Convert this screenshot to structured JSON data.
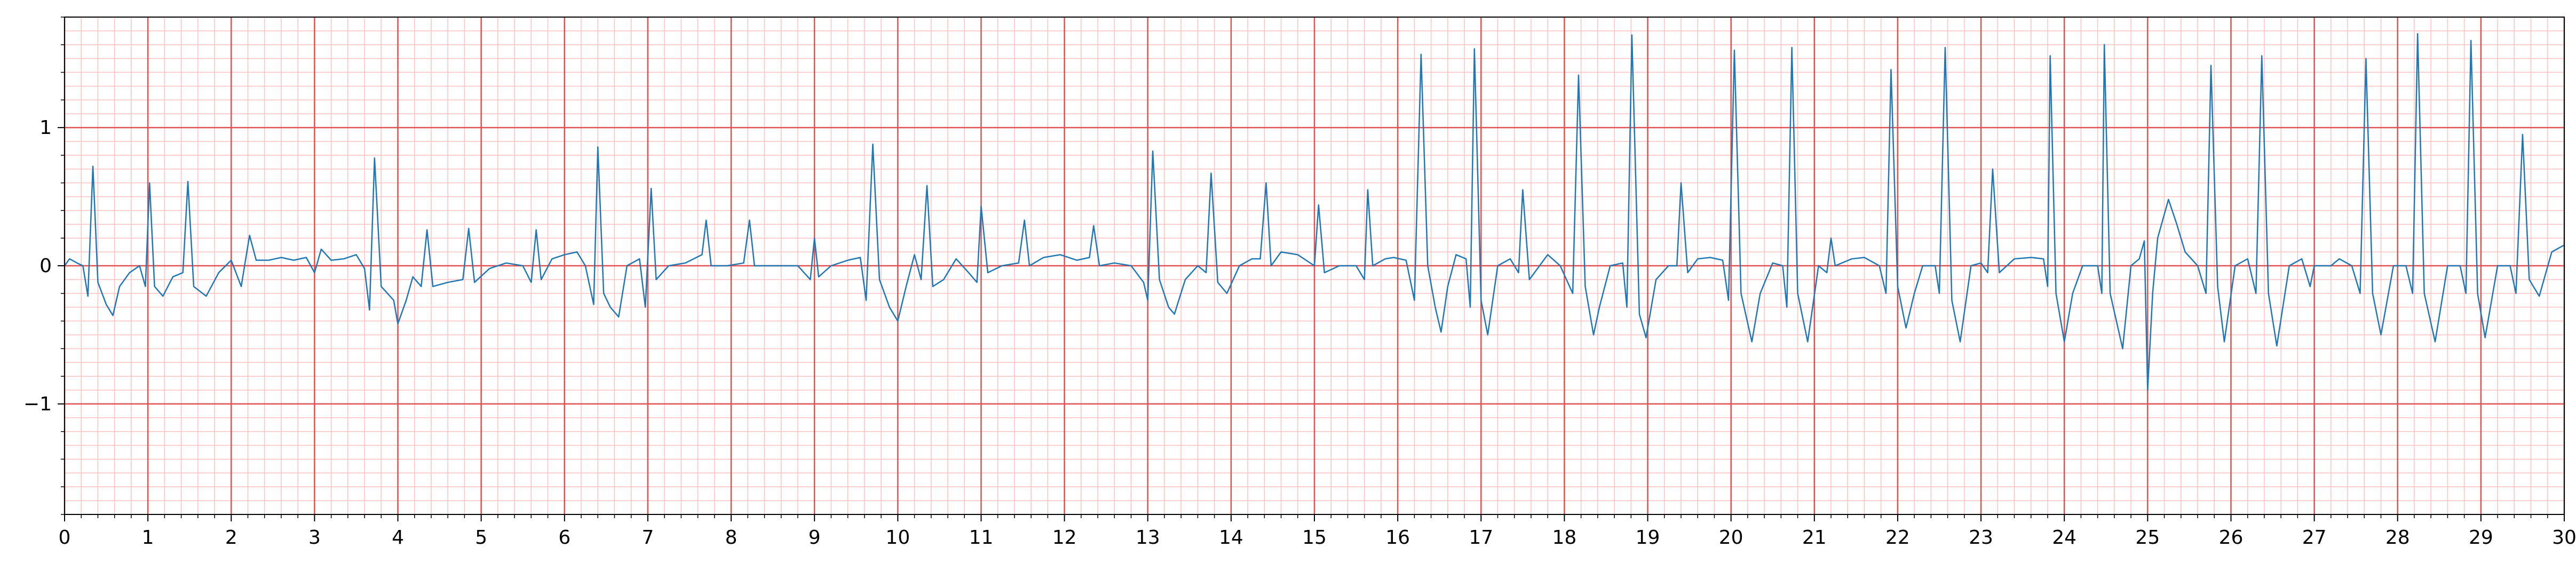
{
  "chart_data": {
    "type": "line",
    "title": "",
    "xlabel": "",
    "ylabel": "",
    "xlim": [
      0,
      30
    ],
    "ylim": [
      -1.8,
      1.8
    ],
    "x_ticks": [
      "0",
      "1",
      "2",
      "3",
      "4",
      "5",
      "6",
      "7",
      "8",
      "9",
      "10",
      "11",
      "12",
      "13",
      "14",
      "15",
      "16",
      "17",
      "18",
      "19",
      "20",
      "21",
      "22",
      "23",
      "24",
      "25",
      "26",
      "27",
      "28",
      "29",
      "30"
    ],
    "y_ticks": [
      {
        "value": 1,
        "label": "1"
      },
      {
        "value": 0,
        "label": "0"
      },
      {
        "value": -1,
        "label": "−1"
      }
    ],
    "grid": {
      "major": true,
      "minor": true,
      "major_x_step": 1,
      "minor_x_step": 0.2,
      "major_y_step": 1,
      "minor_y_step": 0.1
    },
    "colors": {
      "line": "#1f77b4",
      "major_grid": "#e35050",
      "minor_grid": "#ffc0c0",
      "axes": "#000000"
    },
    "series": [
      {
        "points": [
          [
            0.0,
            0.0
          ],
          [
            0.06,
            0.05
          ],
          [
            0.15,
            0.02
          ],
          [
            0.22,
            0.0
          ],
          [
            0.28,
            -0.22
          ],
          [
            0.34,
            0.72
          ],
          [
            0.4,
            -0.12
          ],
          [
            0.5,
            -0.28
          ],
          [
            0.58,
            -0.36
          ],
          [
            0.66,
            -0.15
          ],
          [
            0.78,
            -0.05
          ],
          [
            0.9,
            0.0
          ],
          [
            0.97,
            -0.15
          ],
          [
            1.02,
            0.6
          ],
          [
            1.08,
            -0.15
          ],
          [
            1.18,
            -0.22
          ],
          [
            1.3,
            -0.08
          ],
          [
            1.42,
            -0.05
          ],
          [
            1.48,
            0.61
          ],
          [
            1.55,
            -0.15
          ],
          [
            1.7,
            -0.22
          ],
          [
            1.85,
            -0.05
          ],
          [
            2.0,
            0.04
          ],
          [
            2.12,
            -0.15
          ],
          [
            2.22,
            0.22
          ],
          [
            2.3,
            0.04
          ],
          [
            2.45,
            0.04
          ],
          [
            2.6,
            0.06
          ],
          [
            2.75,
            0.04
          ],
          [
            2.9,
            0.06
          ],
          [
            3.0,
            -0.05
          ],
          [
            3.08,
            0.12
          ],
          [
            3.2,
            0.04
          ],
          [
            3.35,
            0.05
          ],
          [
            3.5,
            0.08
          ],
          [
            3.6,
            -0.02
          ],
          [
            3.66,
            -0.32
          ],
          [
            3.72,
            0.78
          ],
          [
            3.8,
            -0.15
          ],
          [
            3.95,
            -0.25
          ],
          [
            4.0,
            -0.42
          ],
          [
            4.1,
            -0.25
          ],
          [
            4.18,
            -0.08
          ],
          [
            4.28,
            -0.15
          ],
          [
            4.35,
            0.26
          ],
          [
            4.42,
            -0.15
          ],
          [
            4.6,
            -0.12
          ],
          [
            4.78,
            -0.1
          ],
          [
            4.85,
            0.27
          ],
          [
            4.92,
            -0.12
          ],
          [
            5.1,
            -0.02
          ],
          [
            5.3,
            0.02
          ],
          [
            5.5,
            0.0
          ],
          [
            5.6,
            -0.12
          ],
          [
            5.66,
            0.26
          ],
          [
            5.72,
            -0.1
          ],
          [
            5.85,
            0.05
          ],
          [
            6.0,
            0.08
          ],
          [
            6.15,
            0.1
          ],
          [
            6.25,
            0.0
          ],
          [
            6.35,
            -0.28
          ],
          [
            6.4,
            0.86
          ],
          [
            6.47,
            -0.2
          ],
          [
            6.55,
            -0.3
          ],
          [
            6.65,
            -0.37
          ],
          [
            6.75,
            0.0
          ],
          [
            6.9,
            0.05
          ],
          [
            6.97,
            -0.3
          ],
          [
            7.04,
            0.56
          ],
          [
            7.1,
            -0.1
          ],
          [
            7.25,
            0.0
          ],
          [
            7.45,
            0.02
          ],
          [
            7.65,
            0.08
          ],
          [
            7.7,
            0.33
          ],
          [
            7.76,
            0.0
          ],
          [
            7.95,
            0.0
          ],
          [
            8.15,
            0.02
          ],
          [
            8.22,
            0.33
          ],
          [
            8.28,
            0.0
          ],
          [
            8.5,
            0.0
          ],
          [
            8.8,
            0.0
          ],
          [
            8.95,
            -0.1
          ],
          [
            9.0,
            0.2
          ],
          [
            9.05,
            -0.08
          ],
          [
            9.2,
            0.0
          ],
          [
            9.4,
            0.04
          ],
          [
            9.55,
            0.06
          ],
          [
            9.62,
            -0.25
          ],
          [
            9.7,
            0.88
          ],
          [
            9.78,
            -0.1
          ],
          [
            9.9,
            -0.3
          ],
          [
            10.0,
            -0.4
          ],
          [
            10.1,
            -0.15
          ],
          [
            10.2,
            0.08
          ],
          [
            10.28,
            -0.1
          ],
          [
            10.35,
            0.58
          ],
          [
            10.42,
            -0.15
          ],
          [
            10.55,
            -0.1
          ],
          [
            10.7,
            0.05
          ],
          [
            10.85,
            -0.05
          ],
          [
            10.95,
            -0.12
          ],
          [
            11.0,
            0.43
          ],
          [
            11.08,
            -0.05
          ],
          [
            11.25,
            0.0
          ],
          [
            11.45,
            0.02
          ],
          [
            11.52,
            0.33
          ],
          [
            11.58,
            0.0
          ],
          [
            11.75,
            0.06
          ],
          [
            11.95,
            0.08
          ],
          [
            12.15,
            0.04
          ],
          [
            12.3,
            0.06
          ],
          [
            12.35,
            0.29
          ],
          [
            12.42,
            0.0
          ],
          [
            12.6,
            0.02
          ],
          [
            12.8,
            0.0
          ],
          [
            12.95,
            -0.12
          ],
          [
            13.0,
            -0.25
          ],
          [
            13.06,
            0.83
          ],
          [
            13.14,
            -0.1
          ],
          [
            13.25,
            -0.3
          ],
          [
            13.32,
            -0.35
          ],
          [
            13.45,
            -0.1
          ],
          [
            13.6,
            0.0
          ],
          [
            13.7,
            -0.05
          ],
          [
            13.76,
            0.67
          ],
          [
            13.84,
            -0.12
          ],
          [
            13.95,
            -0.2
          ],
          [
            14.1,
            0.0
          ],
          [
            14.25,
            0.05
          ],
          [
            14.35,
            0.05
          ],
          [
            14.42,
            0.6
          ],
          [
            14.48,
            0.0
          ],
          [
            14.6,
            0.1
          ],
          [
            14.8,
            0.08
          ],
          [
            15.0,
            0.0
          ],
          [
            15.05,
            0.44
          ],
          [
            15.12,
            -0.05
          ],
          [
            15.3,
            0.0
          ],
          [
            15.5,
            0.0
          ],
          [
            15.6,
            -0.1
          ],
          [
            15.64,
            0.55
          ],
          [
            15.7,
            0.0
          ],
          [
            15.85,
            0.05
          ],
          [
            15.95,
            0.06
          ],
          [
            16.1,
            0.04
          ],
          [
            16.2,
            -0.25
          ],
          [
            16.28,
            1.53
          ],
          [
            16.36,
            0.0
          ],
          [
            16.45,
            -0.3
          ],
          [
            16.52,
            -0.48
          ],
          [
            16.6,
            -0.15
          ],
          [
            16.7,
            0.08
          ],
          [
            16.82,
            0.05
          ],
          [
            16.87,
            -0.3
          ],
          [
            16.92,
            1.57
          ],
          [
            17.0,
            -0.25
          ],
          [
            17.08,
            -0.5
          ],
          [
            17.2,
            0.0
          ],
          [
            17.35,
            0.05
          ],
          [
            17.45,
            -0.05
          ],
          [
            17.5,
            0.55
          ],
          [
            17.58,
            -0.1
          ],
          [
            17.8,
            0.08
          ],
          [
            17.95,
            0.0
          ],
          [
            18.1,
            -0.2
          ],
          [
            18.17,
            1.38
          ],
          [
            18.25,
            -0.15
          ],
          [
            18.35,
            -0.5
          ],
          [
            18.42,
            -0.3
          ],
          [
            18.55,
            0.0
          ],
          [
            18.7,
            0.02
          ],
          [
            18.75,
            -0.3
          ],
          [
            18.81,
            1.67
          ],
          [
            18.9,
            -0.35
          ],
          [
            18.98,
            -0.52
          ],
          [
            19.1,
            -0.1
          ],
          [
            19.25,
            0.0
          ],
          [
            19.35,
            0.0
          ],
          [
            19.4,
            0.6
          ],
          [
            19.48,
            -0.05
          ],
          [
            19.6,
            0.05
          ],
          [
            19.75,
            0.06
          ],
          [
            19.9,
            0.04
          ],
          [
            19.97,
            -0.25
          ],
          [
            20.04,
            1.56
          ],
          [
            20.12,
            -0.2
          ],
          [
            20.25,
            -0.55
          ],
          [
            20.35,
            -0.2
          ],
          [
            20.5,
            0.02
          ],
          [
            20.62,
            0.0
          ],
          [
            20.67,
            -0.3
          ],
          [
            20.73,
            1.58
          ],
          [
            20.8,
            -0.2
          ],
          [
            20.92,
            -0.55
          ],
          [
            21.05,
            0.0
          ],
          [
            21.15,
            -0.05
          ],
          [
            21.2,
            0.2
          ],
          [
            21.25,
            0.0
          ],
          [
            21.45,
            0.05
          ],
          [
            21.6,
            0.06
          ],
          [
            21.78,
            0.0
          ],
          [
            21.86,
            -0.2
          ],
          [
            21.92,
            1.42
          ],
          [
            22.0,
            -0.15
          ],
          [
            22.1,
            -0.45
          ],
          [
            22.2,
            -0.2
          ],
          [
            22.3,
            0.0
          ],
          [
            22.45,
            0.0
          ],
          [
            22.5,
            -0.2
          ],
          [
            22.57,
            1.58
          ],
          [
            22.65,
            -0.25
          ],
          [
            22.75,
            -0.55
          ],
          [
            22.88,
            0.0
          ],
          [
            23.0,
            0.02
          ],
          [
            23.08,
            -0.05
          ],
          [
            23.14,
            0.7
          ],
          [
            23.22,
            -0.05
          ],
          [
            23.4,
            0.05
          ],
          [
            23.6,
            0.06
          ],
          [
            23.75,
            0.05
          ],
          [
            23.8,
            -0.15
          ],
          [
            23.83,
            1.52
          ],
          [
            23.9,
            -0.2
          ],
          [
            24.0,
            -0.55
          ],
          [
            24.1,
            -0.2
          ],
          [
            24.22,
            0.0
          ],
          [
            24.4,
            0.0
          ],
          [
            24.45,
            -0.2
          ],
          [
            24.48,
            1.6
          ],
          [
            24.55,
            -0.2
          ],
          [
            24.7,
            -0.6
          ],
          [
            24.8,
            0.0
          ],
          [
            24.9,
            0.05
          ],
          [
            24.96,
            0.18
          ],
          [
            25.0,
            -0.9
          ],
          [
            25.06,
            -0.2
          ],
          [
            25.12,
            0.2
          ],
          [
            25.25,
            0.48
          ],
          [
            25.35,
            0.3
          ],
          [
            25.45,
            0.1
          ],
          [
            25.6,
            0.0
          ],
          [
            25.7,
            -0.2
          ],
          [
            25.76,
            1.45
          ],
          [
            25.84,
            -0.15
          ],
          [
            25.92,
            -0.55
          ],
          [
            26.05,
            0.0
          ],
          [
            26.2,
            0.05
          ],
          [
            26.3,
            -0.2
          ],
          [
            26.37,
            1.52
          ],
          [
            26.45,
            -0.2
          ],
          [
            26.55,
            -0.58
          ],
          [
            26.7,
            0.0
          ],
          [
            26.85,
            0.05
          ],
          [
            26.95,
            -0.15
          ],
          [
            27.0,
            0.0
          ],
          [
            27.2,
            0.0
          ],
          [
            27.3,
            0.05
          ],
          [
            27.45,
            0.0
          ],
          [
            27.55,
            -0.2
          ],
          [
            27.62,
            1.5
          ],
          [
            27.7,
            -0.2
          ],
          [
            27.8,
            -0.5
          ],
          [
            27.95,
            0.0
          ],
          [
            28.1,
            0.0
          ],
          [
            28.18,
            -0.2
          ],
          [
            28.24,
            1.68
          ],
          [
            28.32,
            -0.2
          ],
          [
            28.45,
            -0.55
          ],
          [
            28.6,
            0.0
          ],
          [
            28.75,
            0.0
          ],
          [
            28.82,
            -0.2
          ],
          [
            28.88,
            1.63
          ],
          [
            28.96,
            -0.2
          ],
          [
            29.05,
            -0.52
          ],
          [
            29.2,
            0.0
          ],
          [
            29.35,
            0.0
          ],
          [
            29.42,
            -0.2
          ],
          [
            29.5,
            0.95
          ],
          [
            29.58,
            -0.1
          ],
          [
            29.7,
            -0.22
          ],
          [
            29.85,
            0.1
          ],
          [
            30.0,
            0.15
          ]
        ]
      }
    ]
  }
}
